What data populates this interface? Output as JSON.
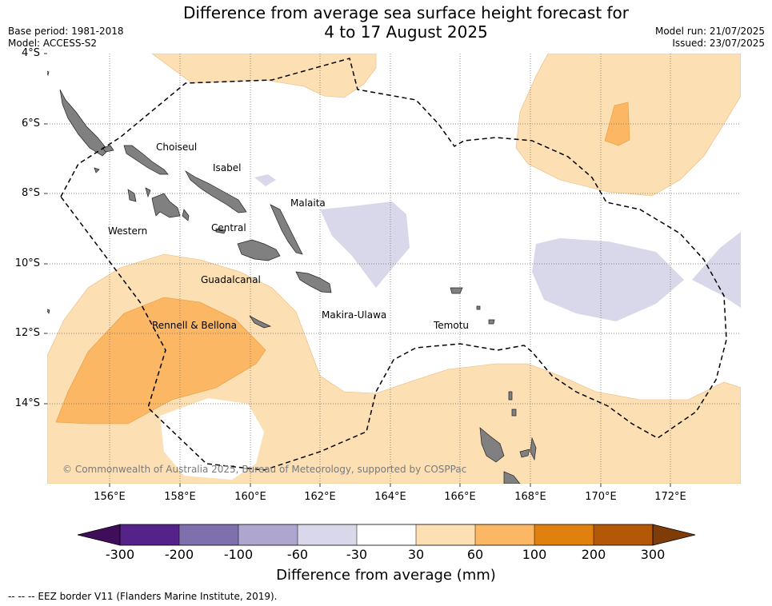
{
  "title": {
    "line1": "Difference from average sea surface height forecast for",
    "line2": "4 to 17 August 2025"
  },
  "meta_left": {
    "base_period": "Base period: 1981-2018",
    "model": "Model: ACCESS-S2"
  },
  "meta_right": {
    "model_run": "Model run: 21/07/2025",
    "issued": "Issued: 23/07/2025"
  },
  "lat_labels": [
    "4°S",
    "6°S",
    "8°S",
    "10°S",
    "12°S",
    "14°S"
  ],
  "lon_labels": [
    "156°E",
    "158°E",
    "160°E",
    "162°E",
    "164°E",
    "166°E",
    "168°E",
    "170°E",
    "172°E"
  ],
  "places": {
    "choiseul": "Choiseul",
    "isabel": "Isabel",
    "malaita": "Malaita",
    "western": "Western",
    "central": "Central",
    "guadalcanal": "Guadalcanal",
    "makira": "Makira-Ulawa",
    "temotu": "Temotu",
    "rennell": "Rennell & Bellona"
  },
  "copyright": "© Commonwealth of Australia 2025, Bureau of Meteorology, supported by COSPPac",
  "colorbar": {
    "ticks": [
      "-300",
      "-200",
      "-100",
      "-60",
      "-30",
      "30",
      "60",
      "100",
      "200",
      "300"
    ],
    "colors": [
      "#3f0d5a",
      "#55228a",
      "#7f70ad",
      "#aea6cf",
      "#d8d8ea",
      "#ffffff",
      "#fcdfb3",
      "#fbb763",
      "#e0810f",
      "#b35806",
      "#7f3b08"
    ],
    "title": "Difference from average (mm)"
  },
  "footer": "--  --  -- EEZ border V11 (Flanders Marine Institute, 2019)."
}
